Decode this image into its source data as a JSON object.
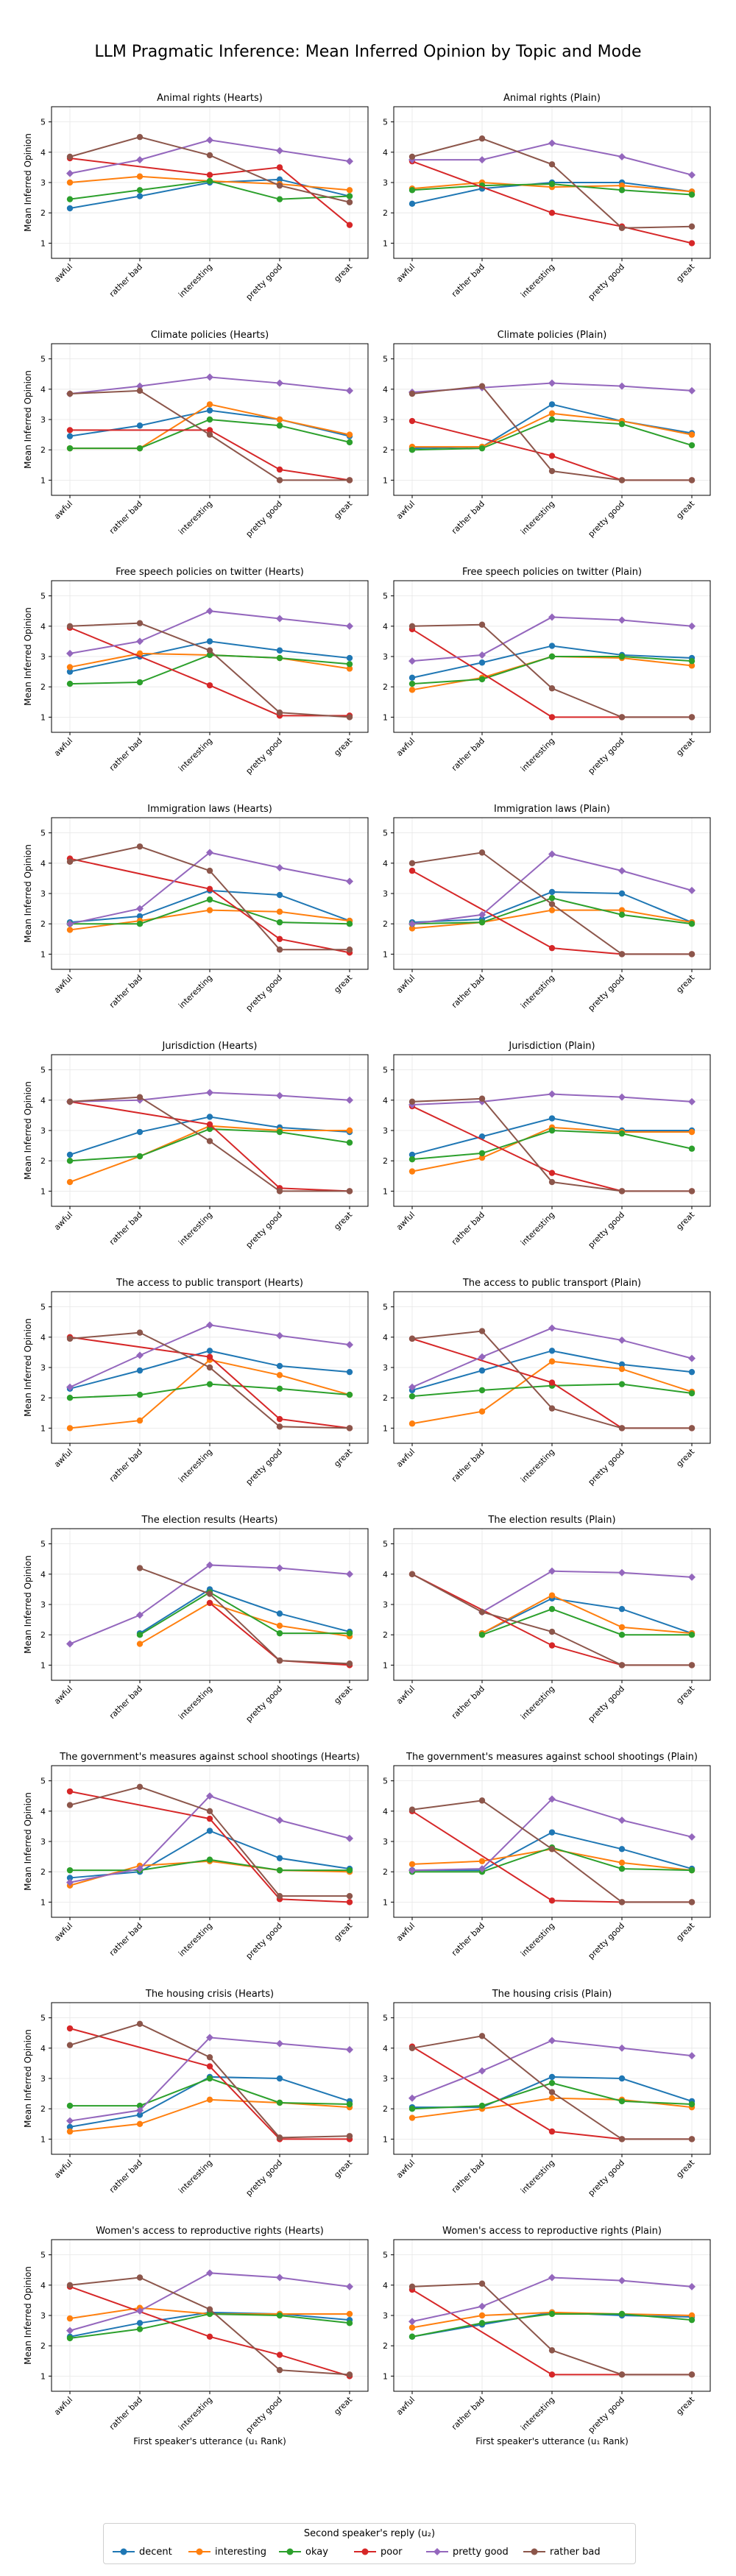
{
  "title": "LLM Pragmatic Inference: Mean Inferred Opinion by Topic and Mode",
  "legend": {
    "title": "Second speaker's reply (u₂)",
    "items": [
      {
        "name": "decent",
        "color": "#1f77b4"
      },
      {
        "name": "interesting",
        "color": "#ff7f0e"
      },
      {
        "name": "okay",
        "color": "#2ca02c"
      },
      {
        "name": "poor",
        "color": "#d62728"
      },
      {
        "name": "pretty good",
        "color": "#9467bd"
      },
      {
        "name": "rather bad",
        "color": "#8c564b"
      }
    ]
  },
  "chart_data": {
    "type": "line",
    "categories": [
      "awful",
      "rather bad",
      "interesting",
      "pretty good",
      "great"
    ],
    "ylabel": "Mean Inferred Opinion",
    "xlabel": "First speaker's utterance (u₁ Rank)",
    "yticks": [
      1,
      2,
      3,
      4,
      5
    ],
    "ylim": [
      0.5,
      5.5
    ],
    "grid": true,
    "series_names": [
      "decent",
      "interesting",
      "okay",
      "poor",
      "pretty good",
      "rather bad"
    ],
    "panels": [
      {
        "title": "Animal rights (Hearts)",
        "series": [
          [
            2.15,
            2.55,
            3.0,
            3.1,
            2.55
          ],
          [
            3.0,
            3.2,
            3.05,
            2.95,
            2.75
          ],
          [
            2.45,
            2.75,
            3.05,
            2.45,
            2.55
          ],
          [
            3.8,
            null,
            3.25,
            3.5,
            1.6
          ],
          [
            3.3,
            3.75,
            4.4,
            4.05,
            3.7
          ],
          [
            3.85,
            4.5,
            3.9,
            2.9,
            2.35
          ]
        ]
      },
      {
        "title": "Animal rights (Plain)",
        "series": [
          [
            2.3,
            2.8,
            3.0,
            3.0,
            2.7
          ],
          [
            2.8,
            3.0,
            2.85,
            2.9,
            2.7
          ],
          [
            2.75,
            2.9,
            2.95,
            2.75,
            2.6
          ],
          [
            3.7,
            null,
            2.0,
            1.55,
            1.0
          ],
          [
            3.75,
            3.75,
            4.3,
            3.85,
            3.25
          ],
          [
            3.85,
            4.45,
            3.6,
            1.5,
            1.55
          ]
        ]
      },
      {
        "title": "Climate policies (Hearts)",
        "series": [
          [
            2.45,
            2.8,
            3.3,
            3.0,
            2.45
          ],
          [
            2.05,
            2.05,
            3.5,
            3.0,
            2.5
          ],
          [
            2.05,
            2.05,
            3.0,
            2.8,
            2.25
          ],
          [
            2.65,
            null,
            2.65,
            1.35,
            1.0
          ],
          [
            3.85,
            4.1,
            4.4,
            4.2,
            3.95
          ],
          [
            3.85,
            3.95,
            2.5,
            1.0,
            1.0
          ]
        ]
      },
      {
        "title": "Climate policies (Plain)",
        "series": [
          [
            2.05,
            2.1,
            3.5,
            2.95,
            2.55
          ],
          [
            2.1,
            2.1,
            3.2,
            2.95,
            2.5
          ],
          [
            2.0,
            2.05,
            3.0,
            2.85,
            2.15
          ],
          [
            2.95,
            null,
            1.8,
            1.0,
            1.0
          ],
          [
            3.9,
            4.05,
            4.2,
            4.1,
            3.95
          ],
          [
            3.85,
            4.1,
            1.3,
            1.0,
            1.0
          ]
        ]
      },
      {
        "title": "Free speech policies on twitter (Hearts)",
        "series": [
          [
            2.5,
            3.0,
            3.5,
            3.2,
            2.95
          ],
          [
            2.65,
            3.1,
            3.05,
            2.95,
            2.6
          ],
          [
            2.1,
            2.15,
            3.05,
            2.95,
            2.75
          ],
          [
            3.95,
            null,
            2.05,
            1.05,
            1.05
          ],
          [
            3.1,
            3.5,
            4.5,
            4.25,
            4.0
          ],
          [
            4.0,
            4.1,
            3.2,
            1.15,
            1.0
          ]
        ]
      },
      {
        "title": "Free speech policies on twitter (Plain)",
        "series": [
          [
            2.3,
            2.8,
            3.35,
            3.05,
            2.95
          ],
          [
            1.9,
            2.3,
            3.0,
            2.95,
            2.7
          ],
          [
            2.1,
            2.25,
            3.0,
            3.0,
            2.85
          ],
          [
            3.9,
            null,
            1.0,
            1.0,
            1.0
          ],
          [
            2.85,
            3.05,
            4.3,
            4.2,
            4.0
          ],
          [
            4.0,
            4.05,
            1.95,
            1.0,
            1.0
          ]
        ]
      },
      {
        "title": "Immigration laws (Hearts)",
        "series": [
          [
            2.05,
            2.25,
            3.1,
            2.95,
            2.1
          ],
          [
            1.8,
            2.1,
            2.45,
            2.4,
            2.1
          ],
          [
            2.0,
            2.0,
            2.8,
            2.05,
            2.0
          ],
          [
            4.15,
            null,
            3.15,
            1.5,
            1.05
          ],
          [
            2.0,
            2.5,
            4.35,
            3.85,
            3.4
          ],
          [
            4.05,
            4.55,
            3.75,
            1.15,
            1.15
          ]
        ]
      },
      {
        "title": "Immigration laws (Plain)",
        "series": [
          [
            2.05,
            2.15,
            3.05,
            3.0,
            2.05
          ],
          [
            1.85,
            2.05,
            2.45,
            2.45,
            2.05
          ],
          [
            2.0,
            2.05,
            2.85,
            2.3,
            2.0
          ],
          [
            3.75,
            null,
            1.2,
            1.0,
            1.0
          ],
          [
            2.0,
            2.3,
            4.3,
            3.75,
            3.1
          ],
          [
            4.0,
            4.35,
            2.65,
            1.0,
            1.0
          ]
        ]
      },
      {
        "title": "Jurisdiction (Hearts)",
        "series": [
          [
            2.2,
            2.95,
            3.45,
            3.1,
            2.95
          ],
          [
            1.3,
            2.15,
            3.15,
            3.0,
            3.0
          ],
          [
            2.0,
            2.15,
            3.05,
            2.95,
            2.6
          ],
          [
            3.95,
            null,
            3.2,
            1.1,
            1.0
          ],
          [
            3.95,
            4.0,
            4.25,
            4.15,
            4.0
          ],
          [
            3.95,
            4.1,
            2.65,
            1.0,
            1.0
          ]
        ]
      },
      {
        "title": "Jurisdiction (Plain)",
        "series": [
          [
            2.2,
            2.8,
            3.4,
            3.0,
            3.0
          ],
          [
            1.65,
            2.1,
            3.1,
            2.95,
            2.95
          ],
          [
            2.05,
            2.25,
            3.0,
            2.9,
            2.4
          ],
          [
            3.8,
            null,
            1.6,
            1.0,
            1.0
          ],
          [
            3.85,
            3.95,
            4.2,
            4.1,
            3.95
          ],
          [
            3.95,
            4.05,
            1.3,
            1.0,
            1.0
          ]
        ]
      },
      {
        "title": "The access to public transport (Hearts)",
        "series": [
          [
            2.3,
            2.9,
            3.55,
            3.05,
            2.85
          ],
          [
            1.0,
            1.25,
            3.25,
            2.75,
            2.1
          ],
          [
            2.0,
            2.1,
            2.45,
            2.3,
            2.1
          ],
          [
            4.0,
            null,
            3.35,
            1.3,
            1.0
          ],
          [
            2.35,
            3.4,
            4.4,
            4.05,
            3.75
          ],
          [
            3.95,
            4.15,
            3.0,
            1.05,
            1.0
          ]
        ]
      },
      {
        "title": "The access to public transport (Plain)",
        "series": [
          [
            2.25,
            2.9,
            3.55,
            3.1,
            2.85
          ],
          [
            1.15,
            1.55,
            3.2,
            2.95,
            2.2
          ],
          [
            2.05,
            2.25,
            2.4,
            2.45,
            2.15
          ],
          [
            3.95,
            null,
            2.5,
            1.0,
            1.0
          ],
          [
            2.35,
            3.35,
            4.3,
            3.9,
            3.3
          ],
          [
            3.95,
            4.2,
            1.65,
            1.0,
            1.0
          ]
        ]
      },
      {
        "title": "The election results (Hearts)",
        "series": [
          [
            null,
            2.05,
            3.5,
            2.7,
            2.1
          ],
          [
            null,
            1.7,
            3.05,
            2.3,
            1.95
          ],
          [
            null,
            2.0,
            3.4,
            2.05,
            2.05
          ],
          [
            null,
            null,
            3.05,
            1.15,
            1.0
          ],
          [
            1.7,
            2.65,
            4.3,
            4.2,
            4.0
          ],
          [
            null,
            4.2,
            3.35,
            1.15,
            1.05
          ]
        ]
      },
      {
        "title": "The election results (Plain)",
        "series": [
          [
            null,
            2.05,
            3.2,
            2.85,
            2.05
          ],
          [
            null,
            2.05,
            3.3,
            2.25,
            2.05
          ],
          [
            null,
            2.0,
            2.85,
            2.0,
            2.0
          ],
          [
            4.0,
            null,
            1.65,
            1.0,
            1.0
          ],
          [
            null,
            2.75,
            4.1,
            4.05,
            3.9
          ],
          [
            4.0,
            2.75,
            2.1,
            1.0,
            1.0
          ]
        ]
      },
      {
        "title": "The government's measures against school shootings (Hearts)",
        "series": [
          [
            1.8,
            2.0,
            3.35,
            2.45,
            2.1
          ],
          [
            1.55,
            2.2,
            2.35,
            2.05,
            2.0
          ],
          [
            2.05,
            2.05,
            2.4,
            2.05,
            2.05
          ],
          [
            4.65,
            null,
            3.75,
            1.1,
            1.0
          ],
          [
            1.65,
            2.1,
            4.5,
            3.7,
            3.1
          ],
          [
            4.2,
            4.8,
            4.0,
            1.2,
            1.2
          ]
        ]
      },
      {
        "title": "The government's measures against school shootings (Plain)",
        "series": [
          [
            2.05,
            2.05,
            3.3,
            2.75,
            2.1
          ],
          [
            2.25,
            2.35,
            2.75,
            2.3,
            2.05
          ],
          [
            2.0,
            2.0,
            2.8,
            2.1,
            2.05
          ],
          [
            4.0,
            null,
            1.05,
            1.0,
            1.0
          ],
          [
            2.05,
            2.1,
            4.4,
            3.7,
            3.15
          ],
          [
            4.05,
            4.35,
            2.75,
            1.0,
            1.0
          ]
        ]
      },
      {
        "title": "The housing crisis (Hearts)",
        "series": [
          [
            1.4,
            1.8,
            3.05,
            3.0,
            2.25
          ],
          [
            1.25,
            1.5,
            2.3,
            2.2,
            2.05
          ],
          [
            2.1,
            2.1,
            3.0,
            2.2,
            2.15
          ],
          [
            4.65,
            null,
            3.4,
            1.0,
            1.0
          ],
          [
            1.6,
            1.95,
            4.35,
            4.15,
            3.95
          ],
          [
            4.1,
            4.8,
            3.7,
            1.05,
            1.1
          ]
        ]
      },
      {
        "title": "The housing crisis (Plain)",
        "series": [
          [
            2.05,
            2.05,
            3.05,
            3.0,
            2.25
          ],
          [
            1.7,
            2.0,
            2.35,
            2.3,
            2.05
          ],
          [
            2.0,
            2.1,
            2.85,
            2.25,
            2.15
          ],
          [
            4.05,
            null,
            1.25,
            1.0,
            1.0
          ],
          [
            2.35,
            3.25,
            4.25,
            4.0,
            3.75
          ],
          [
            4.0,
            4.4,
            2.55,
            1.0,
            1.0
          ]
        ]
      },
      {
        "title": "Women's access to reproductive rights (Hearts)",
        "series": [
          [
            2.3,
            2.75,
            3.1,
            3.05,
            2.85
          ],
          [
            2.9,
            3.25,
            3.05,
            3.05,
            3.05
          ],
          [
            2.25,
            2.55,
            3.05,
            3.0,
            2.75
          ],
          [
            3.95,
            null,
            2.3,
            1.7,
            1.0
          ],
          [
            2.5,
            3.15,
            4.4,
            4.25,
            3.95
          ],
          [
            4.0,
            4.25,
            3.2,
            1.2,
            1.05
          ]
        ]
      },
      {
        "title": "Women's access to reproductive rights (Plain)",
        "series": [
          [
            2.3,
            2.7,
            3.1,
            3.0,
            2.95
          ],
          [
            2.6,
            3.0,
            3.1,
            3.05,
            3.0
          ],
          [
            2.3,
            2.75,
            3.05,
            3.05,
            2.85
          ],
          [
            3.85,
            null,
            1.05,
            1.05,
            1.05
          ],
          [
            2.8,
            3.3,
            4.25,
            4.15,
            3.95
          ],
          [
            3.95,
            4.05,
            1.85,
            1.05,
            1.05
          ]
        ]
      }
    ]
  }
}
